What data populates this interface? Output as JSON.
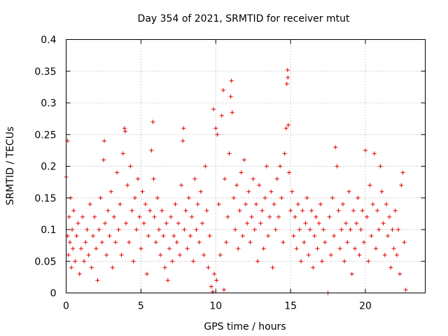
{
  "chart_data": {
    "type": "scatter",
    "title": "Day 354 of 2021, SRMTID for receiver mtut",
    "xlabel": "GPS time / hours",
    "ylabel": "SRMTID / TECUs",
    "xlim": [
      0,
      24
    ],
    "ylim": [
      0,
      0.4
    ],
    "x_ticks": [
      0,
      5,
      10,
      15,
      20
    ],
    "x_tick_labels": [
      "0",
      "5",
      "10",
      "15",
      "20"
    ],
    "y_ticks": [
      0,
      0.05,
      0.1,
      0.15,
      0.2,
      0.25,
      0.3,
      0.35,
      0.4
    ],
    "y_tick_labels": [
      "0",
      "0.05",
      "0.1",
      "0.15",
      "0.2",
      "0.25",
      "0.3",
      "0.35",
      "0.4"
    ],
    "grid": true,
    "marker": "plus",
    "color": "#e00000",
    "series": [
      {
        "name": "SRMTID",
        "points": [
          [
            0.0,
            0.183
          ],
          [
            0.1,
            0.24
          ],
          [
            0.1,
            0.09
          ],
          [
            0.15,
            0.06
          ],
          [
            0.2,
            0.12
          ],
          [
            0.25,
            0.08
          ],
          [
            0.3,
            0.15
          ],
          [
            0.35,
            0.04
          ],
          [
            0.4,
            0.1
          ],
          [
            0.45,
            0.07
          ],
          [
            0.5,
            0.13
          ],
          [
            0.6,
            0.05
          ],
          [
            0.7,
            0.09
          ],
          [
            0.8,
            0.11
          ],
          [
            0.9,
            0.03
          ],
          [
            1.0,
            0.07
          ],
          [
            1.1,
            0.12
          ],
          [
            1.2,
            0.05
          ],
          [
            1.3,
            0.08
          ],
          [
            1.4,
            0.1
          ],
          [
            1.5,
            0.06
          ],
          [
            1.6,
            0.14
          ],
          [
            1.7,
            0.04
          ],
          [
            1.8,
            0.09
          ],
          [
            1.9,
            0.12
          ],
          [
            2.0,
            0.07
          ],
          [
            2.1,
            0.02
          ],
          [
            2.2,
            0.1
          ],
          [
            2.3,
            0.15
          ],
          [
            2.4,
            0.08
          ],
          [
            2.5,
            0.21
          ],
          [
            2.55,
            0.24
          ],
          [
            2.6,
            0.11
          ],
          [
            2.7,
            0.06
          ],
          [
            2.8,
            0.13
          ],
          [
            2.9,
            0.09
          ],
          [
            3.0,
            0.16
          ],
          [
            3.1,
            0.04
          ],
          [
            3.2,
            0.12
          ],
          [
            3.3,
            0.08
          ],
          [
            3.4,
            0.19
          ],
          [
            3.5,
            0.1
          ],
          [
            3.6,
            0.14
          ],
          [
            3.7,
            0.06
          ],
          [
            3.8,
            0.22
          ],
          [
            3.9,
            0.26
          ],
          [
            3.95,
            0.255
          ],
          [
            4.0,
            0.11
          ],
          [
            4.1,
            0.17
          ],
          [
            4.2,
            0.08
          ],
          [
            4.3,
            0.2
          ],
          [
            4.4,
            0.13
          ],
          [
            4.5,
            0.05
          ],
          [
            4.6,
            0.15
          ],
          [
            4.7,
            0.1
          ],
          [
            4.8,
            0.18
          ],
          [
            4.9,
            0.12
          ],
          [
            5.0,
            0.07
          ],
          [
            5.1,
            0.16
          ],
          [
            5.2,
            0.11
          ],
          [
            5.3,
            0.14
          ],
          [
            5.4,
            0.03
          ],
          [
            5.5,
            0.09
          ],
          [
            5.6,
            0.13
          ],
          [
            5.7,
            0.225
          ],
          [
            5.8,
            0.27
          ],
          [
            5.85,
            0.18
          ],
          [
            5.9,
            0.12
          ],
          [
            6.0,
            0.08
          ],
          [
            6.1,
            0.15
          ],
          [
            6.2,
            0.1
          ],
          [
            6.3,
            0.06
          ],
          [
            6.4,
            0.13
          ],
          [
            6.5,
            0.09
          ],
          [
            6.6,
            0.04
          ],
          [
            6.7,
            0.11
          ],
          [
            6.8,
            0.02
          ],
          [
            6.9,
            0.07
          ],
          [
            7.0,
            0.12
          ],
          [
            7.1,
            0.05
          ],
          [
            7.2,
            0.09
          ],
          [
            7.3,
            0.14
          ],
          [
            7.4,
            0.08
          ],
          [
            7.5,
            0.11
          ],
          [
            7.6,
            0.06
          ],
          [
            7.7,
            0.17
          ],
          [
            7.8,
            0.24
          ],
          [
            7.85,
            0.26
          ],
          [
            7.9,
            0.1
          ],
          [
            8.0,
            0.13
          ],
          [
            8.1,
            0.07
          ],
          [
            8.2,
            0.15
          ],
          [
            8.3,
            0.09
          ],
          [
            8.4,
            0.12
          ],
          [
            8.5,
            0.05
          ],
          [
            8.6,
            0.18
          ],
          [
            8.7,
            0.1
          ],
          [
            8.8,
            0.14
          ],
          [
            8.9,
            0.08
          ],
          [
            9.0,
            0.16
          ],
          [
            9.1,
            0.11
          ],
          [
            9.2,
            0.06
          ],
          [
            9.3,
            0.2
          ],
          [
            9.4,
            0.13
          ],
          [
            9.5,
            0.04
          ],
          [
            9.6,
            0.09
          ],
          [
            9.7,
            0.01
          ],
          [
            9.8,
            0.002
          ],
          [
            9.85,
            0.29
          ],
          [
            9.9,
            0.03
          ],
          [
            10.0,
            0.26
          ],
          [
            10.05,
            0.02
          ],
          [
            10.1,
            0.25
          ],
          [
            10.2,
            0.14
          ],
          [
            10.3,
            0.06
          ],
          [
            10.4,
            0.28
          ],
          [
            10.5,
            0.32
          ],
          [
            10.55,
            0.005
          ],
          [
            10.6,
            0.18
          ],
          [
            10.7,
            0.08
          ],
          [
            10.8,
            0.12
          ],
          [
            10.9,
            0.22
          ],
          [
            11.0,
            0.31
          ],
          [
            11.05,
            0.335
          ],
          [
            11.1,
            0.285
          ],
          [
            11.2,
            0.15
          ],
          [
            11.3,
            0.1
          ],
          [
            11.4,
            0.17
          ],
          [
            11.5,
            0.07
          ],
          [
            11.6,
            0.13
          ],
          [
            11.7,
            0.19
          ],
          [
            11.8,
            0.09
          ],
          [
            11.9,
            0.21
          ],
          [
            12.0,
            0.14
          ],
          [
            12.1,
            0.11
          ],
          [
            12.2,
            0.16
          ],
          [
            12.3,
            0.08
          ],
          [
            12.4,
            0.12
          ],
          [
            12.5,
            0.18
          ],
          [
            12.6,
            0.1
          ],
          [
            12.7,
            0.14
          ],
          [
            12.8,
            0.05
          ],
          [
            12.9,
            0.17
          ],
          [
            13.0,
            0.11
          ],
          [
            13.1,
            0.13
          ],
          [
            13.2,
            0.07
          ],
          [
            13.3,
            0.15
          ],
          [
            13.4,
            0.2
          ],
          [
            13.5,
            0.09
          ],
          [
            13.6,
            0.12
          ],
          [
            13.7,
            0.16
          ],
          [
            13.8,
            0.04
          ],
          [
            13.9,
            0.14
          ],
          [
            14.0,
            0.1
          ],
          [
            14.1,
            0.18
          ],
          [
            14.2,
            0.12
          ],
          [
            14.3,
            0.2
          ],
          [
            14.4,
            0.15
          ],
          [
            14.5,
            0.08
          ],
          [
            14.6,
            0.22
          ],
          [
            14.7,
            0.26
          ],
          [
            14.75,
            0.33
          ],
          [
            14.8,
            0.352
          ],
          [
            14.82,
            0.34
          ],
          [
            14.85,
            0.265
          ],
          [
            14.9,
            0.19
          ],
          [
            15.0,
            0.13
          ],
          [
            15.1,
            0.16
          ],
          [
            15.2,
            0.09
          ],
          [
            15.3,
            0.12
          ],
          [
            15.4,
            0.07
          ],
          [
            15.5,
            0.14
          ],
          [
            15.6,
            0.1
          ],
          [
            15.7,
            0.05
          ],
          [
            15.8,
            0.13
          ],
          [
            15.9,
            0.08
          ],
          [
            16.0,
            0.11
          ],
          [
            16.1,
            0.15
          ],
          [
            16.2,
            0.06
          ],
          [
            16.3,
            0.1
          ],
          [
            16.4,
            0.13
          ],
          [
            16.5,
            0.04
          ],
          [
            16.6,
            0.09
          ],
          [
            16.7,
            0.12
          ],
          [
            16.8,
            0.07
          ],
          [
            16.9,
            0.11
          ],
          [
            17.0,
            0.14
          ],
          [
            17.1,
            0.05
          ],
          [
            17.2,
            0.1
          ],
          [
            17.3,
            0.08
          ],
          [
            17.5,
            0.0
          ],
          [
            17.6,
            0.12
          ],
          [
            17.7,
            0.06
          ],
          [
            17.8,
            0.15
          ],
          [
            17.9,
            0.09
          ],
          [
            18.0,
            0.23
          ],
          [
            18.1,
            0.2
          ],
          [
            18.2,
            0.13
          ],
          [
            18.3,
            0.07
          ],
          [
            18.4,
            0.1
          ],
          [
            18.5,
            0.14
          ],
          [
            18.6,
            0.05
          ],
          [
            18.7,
            0.11
          ],
          [
            18.8,
            0.08
          ],
          [
            18.9,
            0.16
          ],
          [
            19.0,
            0.1
          ],
          [
            19.1,
            0.03
          ],
          [
            19.2,
            0.13
          ],
          [
            19.3,
            0.07
          ],
          [
            19.4,
            0.11
          ],
          [
            19.5,
            0.15
          ],
          [
            19.6,
            0.06
          ],
          [
            19.7,
            0.1
          ],
          [
            19.8,
            0.13
          ],
          [
            19.9,
            0.08
          ],
          [
            20.0,
            0.225
          ],
          [
            20.1,
            0.12
          ],
          [
            20.2,
            0.05
          ],
          [
            20.3,
            0.17
          ],
          [
            20.4,
            0.09
          ],
          [
            20.5,
            0.14
          ],
          [
            20.6,
            0.22
          ],
          [
            20.7,
            0.07
          ],
          [
            20.8,
            0.13
          ],
          [
            20.9,
            0.1
          ],
          [
            21.0,
            0.2
          ],
          [
            21.1,
            0.16
          ],
          [
            21.2,
            0.11
          ],
          [
            21.3,
            0.06
          ],
          [
            21.4,
            0.14
          ],
          [
            21.5,
            0.09
          ],
          [
            21.6,
            0.12
          ],
          [
            21.7,
            0.04
          ],
          [
            21.8,
            0.1
          ],
          [
            21.9,
            0.07
          ],
          [
            22.0,
            0.13
          ],
          [
            22.1,
            0.06
          ],
          [
            22.2,
            0.1
          ],
          [
            22.3,
            0.03
          ],
          [
            22.4,
            0.17
          ],
          [
            22.5,
            0.19
          ],
          [
            22.6,
            0.08
          ],
          [
            22.7,
            0.005
          ]
        ]
      }
    ]
  }
}
